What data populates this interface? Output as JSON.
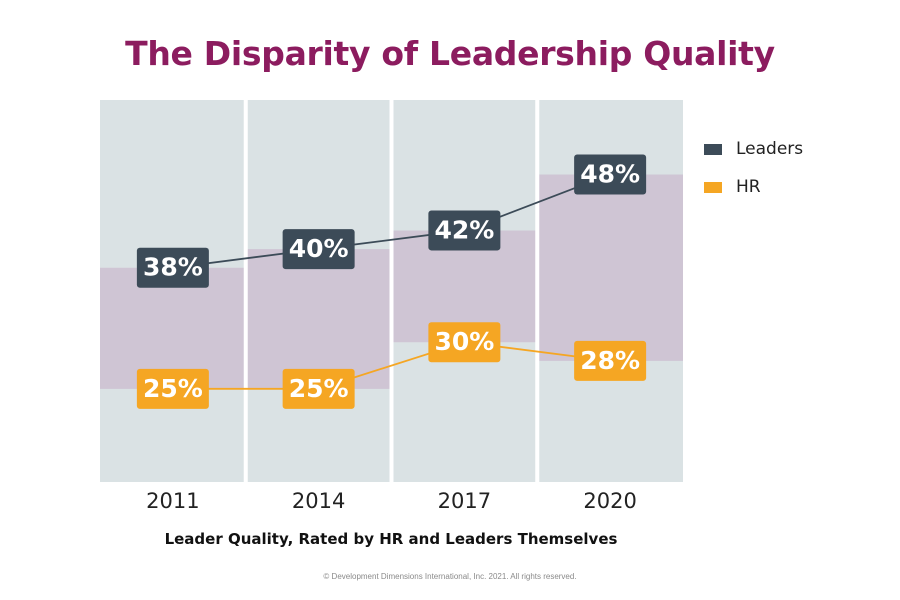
{
  "colors": {
    "title": "#8c1c5f",
    "background_band": "#dae2e4",
    "gap_band": "#cfc5d4",
    "leaders": "#3c4b58",
    "hr": "#f5a623",
    "label_text": "#ffffff"
  },
  "chart_data": {
    "type": "line",
    "title": "The Disparity of Leadership Quality",
    "subtitle": "Leader Quality, Rated by HR and Leaders Themselves",
    "categories": [
      "2011",
      "2014",
      "2017",
      "2020"
    ],
    "series": [
      {
        "name": "Leaders",
        "values": [
          38,
          40,
          42,
          48
        ],
        "labels": [
          "38%",
          "40%",
          "42%",
          "48%"
        ],
        "color": "#3c4b58"
      },
      {
        "name": "HR",
        "values": [
          25,
          25,
          30,
          28
        ],
        "labels": [
          "25%",
          "25%",
          "30%",
          "28%"
        ],
        "color": "#f5a623"
      }
    ],
    "ylim": [
      15,
      56
    ],
    "legend_position": "right",
    "shaded_gap_between_series": true,
    "grid": false
  },
  "footer": {
    "copyright": "© Development Dimensions International, Inc. 2021. All rights reserved."
  }
}
